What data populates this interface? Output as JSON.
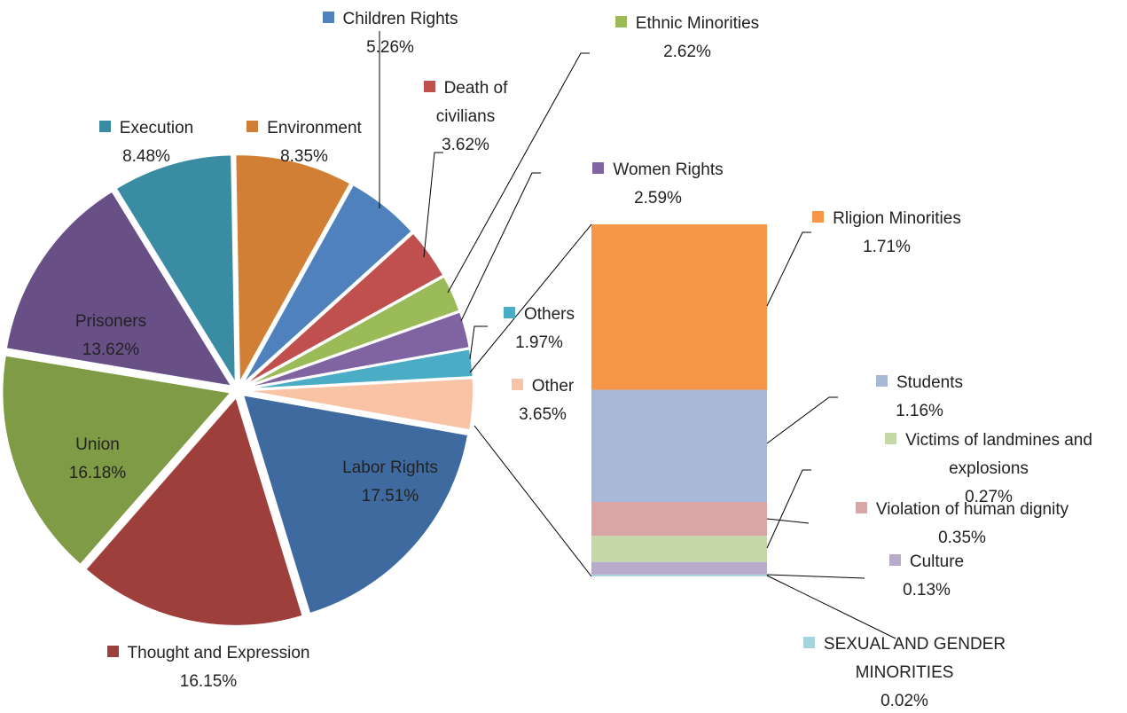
{
  "chart_data": {
    "type": "pie-of-bar",
    "pie": {
      "labels": [
        "Labor Rights",
        "Thought and Expression",
        "Union",
        "Prisoners",
        "Execution",
        "Environment",
        "Children Rights",
        "Death of civilians",
        "Ethnic Minorities",
        "Women Rights",
        "Others",
        "Other"
      ],
      "values": [
        17.51,
        16.15,
        16.18,
        13.62,
        8.48,
        8.35,
        5.26,
        3.62,
        2.62,
        2.59,
        1.97,
        3.65
      ],
      "value_labels": [
        "17.51%",
        "16.15%",
        "16.18%",
        "13.62%",
        "8.48%",
        "8.35%",
        "5.26%",
        "3.62%",
        "2.62%",
        "2.59%",
        "1.97%",
        "3.65%"
      ],
      "colors": [
        "#3f6aa0",
        "#9e3f3c",
        "#7f9b45",
        "#684f86",
        "#3a8ca3",
        "#d17f34",
        "#4f81bd",
        "#c0504d",
        "#9bbb59",
        "#8064a2",
        "#4bacc6",
        "#f9c4a6"
      ]
    },
    "bar": {
      "labels": [
        "SEXUAL AND GENDER MINORITIES",
        "Culture",
        "Victims of landmines and explosions",
        "Violation of human dignity",
        "Students",
        "Rligion Minorities"
      ],
      "values": [
        0.02,
        0.13,
        0.27,
        0.35,
        1.16,
        1.71
      ],
      "value_labels": [
        "0.02%",
        "0.13%",
        "0.27%",
        "0.35%",
        "1.16%",
        "1.71%"
      ],
      "colors": [
        "#a5d4df",
        "#b8aacb",
        "#c5d8a8",
        "#d9a5a5",
        "#a7b9d6",
        "#f79646"
      ]
    }
  }
}
